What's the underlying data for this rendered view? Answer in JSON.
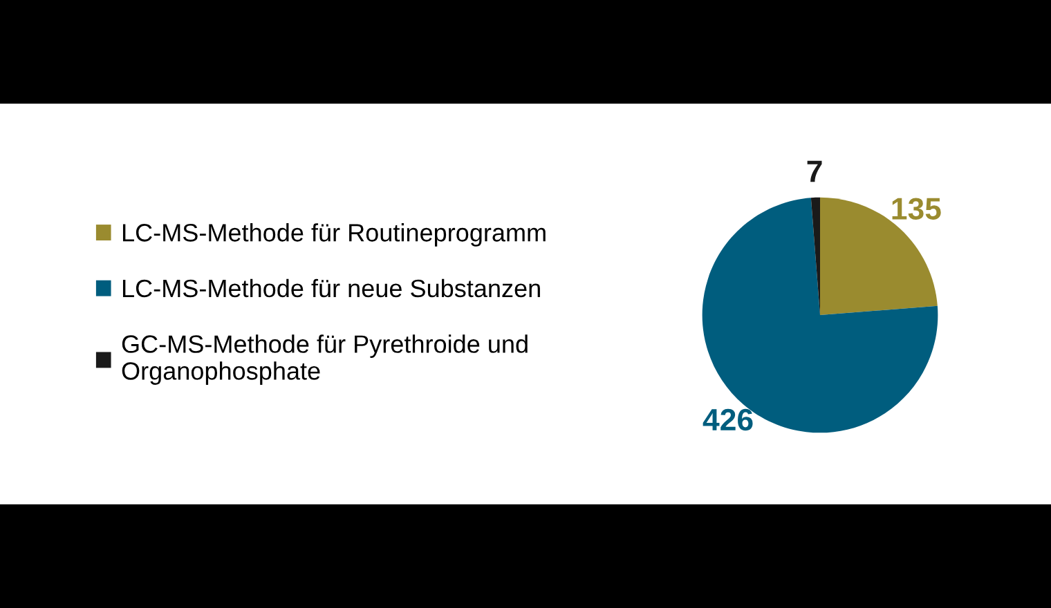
{
  "chart_data": {
    "type": "pie",
    "categories": [
      "LC-MS-Methode für Routineprogramm",
      "LC-MS-Methode für neue Substanzen",
      "GC-MS-Methode für Pyrethroide und\nOrganophosphate"
    ],
    "values": [
      135,
      426,
      7
    ],
    "colors": [
      "#9a8b2f",
      "#005d7e",
      "#1a1a1a"
    ],
    "data_labels": true,
    "legend": "left"
  }
}
